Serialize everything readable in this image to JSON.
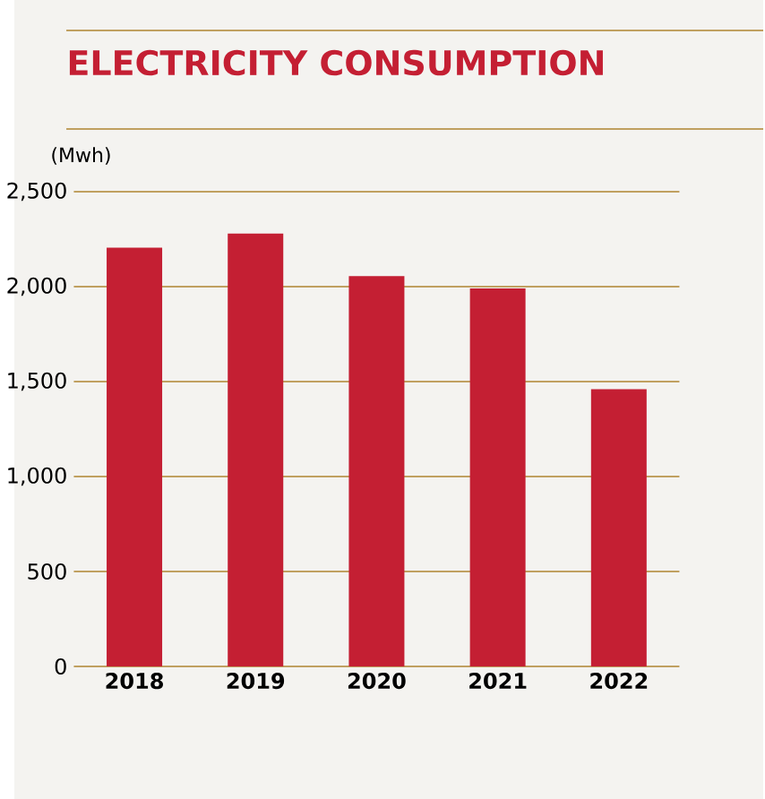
{
  "chart_data": {
    "type": "bar",
    "title": "ELECTRICITY CONSUMPTION",
    "ylabel": "(Mwh)",
    "categories": [
      "2018",
      "2019",
      "2020",
      "2021",
      "2022"
    ],
    "values": [
      2205,
      2280,
      2055,
      1990,
      1460
    ],
    "color": "#c41f33",
    "ylim": [
      0,
      2500
    ],
    "yticks": [
      {
        "value": 0,
        "label": "0"
      },
      {
        "value": 500,
        "label": "500"
      },
      {
        "value": 1000,
        "label": "1,000"
      },
      {
        "value": 1500,
        "label": "1,500"
      },
      {
        "value": 2000,
        "label": "2,000"
      },
      {
        "value": 2500,
        "label": "2,500"
      }
    ],
    "grid": "y"
  }
}
